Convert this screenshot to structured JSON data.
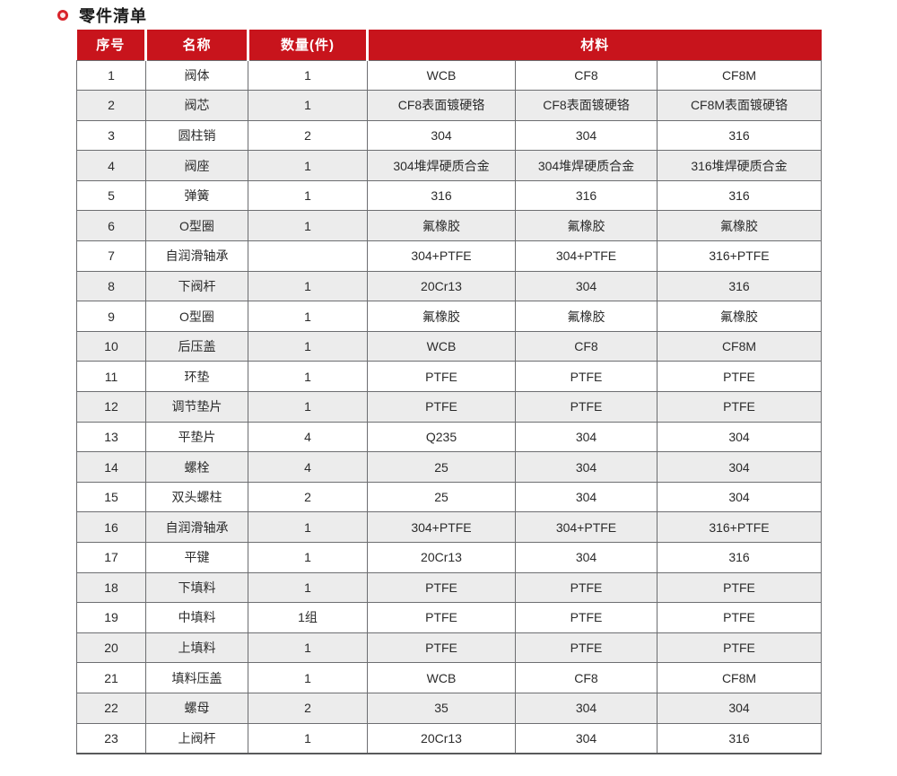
{
  "title": "零件清单",
  "colors": {
    "header_red": "#c8141c",
    "alt_row_gray": "#ececec",
    "border_gray": "#6d6e71",
    "bullet_red": "#d8232a"
  },
  "table": {
    "headers": {
      "serial": "序号",
      "name": "名称",
      "quantity": "数量(件)",
      "material": "材料"
    },
    "rows": [
      {
        "no": "1",
        "name": "阀体",
        "qty": "1",
        "materials": [
          "WCB",
          "CF8",
          "CF8M"
        ]
      },
      {
        "no": "2",
        "name": "阀芯",
        "qty": "1",
        "materials": [
          "CF8表面镀硬铬",
          "CF8表面镀硬铬",
          "CF8M表面镀硬铬"
        ]
      },
      {
        "no": "3",
        "name": "圆柱销",
        "qty": "2",
        "materials": [
          "304",
          "304",
          "316"
        ]
      },
      {
        "no": "4",
        "name": "阀座",
        "qty": "1",
        "materials": [
          "304堆焊硬质合金",
          "304堆焊硬质合金",
          "316堆焊硬质合金"
        ]
      },
      {
        "no": "5",
        "name": "弹簧",
        "qty": "1",
        "materials": [
          "316",
          "316",
          "316"
        ]
      },
      {
        "no": "6",
        "name": "O型圈",
        "qty": "1",
        "materials": [
          "氟橡胶",
          "氟橡胶",
          "氟橡胶"
        ]
      },
      {
        "no": "7",
        "name": "自润滑轴承",
        "qty": "",
        "materials": [
          "304+PTFE",
          "304+PTFE",
          "316+PTFE"
        ]
      },
      {
        "no": "8",
        "name": "下阀杆",
        "qty": "1",
        "materials": [
          "20Cr13",
          "304",
          "316"
        ]
      },
      {
        "no": "9",
        "name": "O型圈",
        "qty": "1",
        "materials": [
          "氟橡胶",
          "氟橡胶",
          "氟橡胶"
        ]
      },
      {
        "no": "10",
        "name": "后压盖",
        "qty": "1",
        "materials": [
          "WCB",
          "CF8",
          "CF8M"
        ]
      },
      {
        "no": "11",
        "name": "环垫",
        "qty": "1",
        "materials": [
          "PTFE",
          "PTFE",
          "PTFE"
        ]
      },
      {
        "no": "12",
        "name": "调节垫片",
        "qty": "1",
        "materials": [
          "PTFE",
          "PTFE",
          "PTFE"
        ]
      },
      {
        "no": "13",
        "name": "平垫片",
        "qty": "4",
        "materials": [
          "Q235",
          "304",
          "304"
        ]
      },
      {
        "no": "14",
        "name": "螺栓",
        "qty": "4",
        "materials": [
          "25",
          "304",
          "304"
        ]
      },
      {
        "no": "15",
        "name": "双头螺柱",
        "qty": "2",
        "materials": [
          "25",
          "304",
          "304"
        ]
      },
      {
        "no": "16",
        "name": "自润滑轴承",
        "qty": "1",
        "materials": [
          "304+PTFE",
          "304+PTFE",
          "316+PTFE"
        ]
      },
      {
        "no": "17",
        "name": "平键",
        "qty": "1",
        "materials": [
          "20Cr13",
          "304",
          "316"
        ]
      },
      {
        "no": "18",
        "name": "下填料",
        "qty": "1",
        "materials": [
          "PTFE",
          "PTFE",
          "PTFE"
        ]
      },
      {
        "no": "19",
        "name": "中填料",
        "qty": "1组",
        "materials": [
          "PTFE",
          "PTFE",
          "PTFE"
        ]
      },
      {
        "no": "20",
        "name": "上填料",
        "qty": "1",
        "materials": [
          "PTFE",
          "PTFE",
          "PTFE"
        ]
      },
      {
        "no": "21",
        "name": "填料压盖",
        "qty": "1",
        "materials": [
          "WCB",
          "CF8",
          "CF8M"
        ]
      },
      {
        "no": "22",
        "name": "螺母",
        "qty": "2",
        "materials": [
          "35",
          "304",
          "304"
        ]
      },
      {
        "no": "23",
        "name": "上阀杆",
        "qty": "1",
        "materials": [
          "20Cr13",
          "304",
          "316"
        ]
      }
    ]
  }
}
